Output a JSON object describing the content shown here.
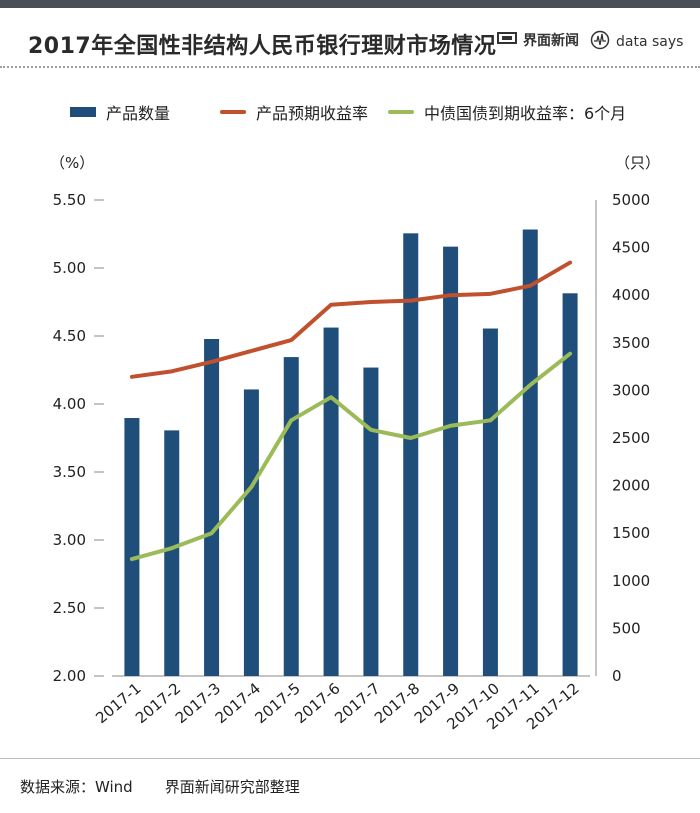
{
  "header": {
    "title": "2017年全国性非结构人民币银行理财市场情况",
    "brand_jiemian": "界面新闻",
    "brand_datasays": "data says"
  },
  "legend": {
    "bar": "产品数量",
    "line1": "产品预期收益率",
    "line2": "中债国债到期收益率：6个月"
  },
  "units": {
    "left": "（%）",
    "right": "（只）"
  },
  "colors": {
    "bar": "#1f4e7a",
    "line1": "#c0502e",
    "line2": "#9bbb59",
    "axis": "#888888"
  },
  "footer": {
    "source_label": "数据来源：Wind",
    "source_org": "界面新闻研究部整理"
  },
  "chart_data": {
    "type": "bar+line",
    "title": "2017年全国性非结构人民币银行理财市场情况",
    "categories": [
      "2017-1",
      "2017-2",
      "2017-3",
      "2017-4",
      "2017-5",
      "2017-6",
      "2017-7",
      "2017-8",
      "2017-9",
      "2017-10",
      "2017-11",
      "2017-12"
    ],
    "left_axis": {
      "label": "（%）",
      "ylim": [
        2.0,
        5.5
      ],
      "ticks": [
        "2.00",
        "2.50",
        "3.00",
        "3.50",
        "4.00",
        "4.50",
        "5.00",
        "5.50"
      ]
    },
    "right_axis": {
      "label": "（只）",
      "ylim": [
        0,
        5000
      ],
      "ticks": [
        "0",
        "500",
        "1000",
        "1500",
        "2000",
        "2500",
        "3000",
        "3500",
        "4000",
        "4500",
        "5000"
      ]
    },
    "series": [
      {
        "name": "产品数量",
        "type": "bar",
        "axis": "right",
        "values": [
          2710,
          2580,
          3540,
          3010,
          3350,
          3660,
          3240,
          4650,
          4510,
          3650,
          4690,
          4020
        ]
      },
      {
        "name": "产品预期收益率",
        "type": "line",
        "axis": "left",
        "values": [
          4.2,
          4.24,
          4.31,
          4.39,
          4.47,
          4.73,
          4.75,
          4.76,
          4.8,
          4.81,
          4.87,
          5.04
        ]
      },
      {
        "name": "中债国债到期收益率：6个月",
        "type": "line",
        "axis": "left",
        "values": [
          2.86,
          2.94,
          3.05,
          3.39,
          3.88,
          4.05,
          3.81,
          3.75,
          3.84,
          3.88,
          4.14,
          4.37
        ]
      }
    ]
  }
}
